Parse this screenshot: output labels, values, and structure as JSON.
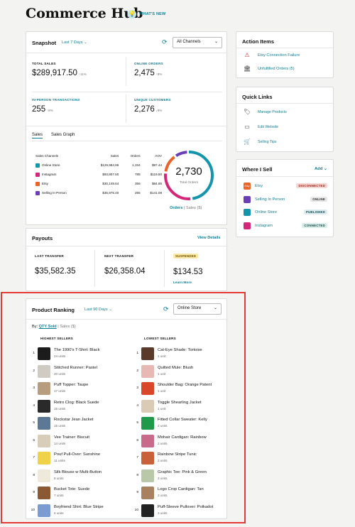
{
  "header": {
    "title": "Commerce Hub",
    "whats_new": "WHAT'S NEW"
  },
  "snapshot": {
    "title": "Snapshot",
    "range": "Last 7 Days",
    "channel": "All Channels",
    "metrics": [
      {
        "label": "TOTAL SALES",
        "value": "$289,917.50",
        "change": "↑11%"
      },
      {
        "label": "ONLINE ORDERS",
        "value": "2,475",
        "change": "↑8%"
      },
      {
        "label": "IN-PERSON TRANSACTIONS",
        "value": "255",
        "change": "↑8%"
      },
      {
        "label": "UNIQUE CUSTOMERS",
        "value": "2,276",
        "change": "↓6%"
      }
    ],
    "tabs": [
      "Sales",
      "Sales Graph"
    ],
    "table": {
      "headers": [
        "Sales Channels",
        "Sales",
        "Orders",
        "AOV"
      ],
      "rows": [
        {
          "channel": "Online Store",
          "sales": "$129,984.96",
          "orders": "1,334",
          "aov": "$97.44",
          "color": "#1595ab"
        },
        {
          "channel": "Instagram",
          "sales": "$93,807.50",
          "orders": "785",
          "aov": "$119.50",
          "color": "#d3287a"
        },
        {
          "channel": "Etsy",
          "sales": "$30,149.64",
          "orders": "356",
          "aov": "$84.69",
          "color": "#e8642a"
        },
        {
          "channel": "Selling In Person",
          "sales": "$35,975.40",
          "orders": "255",
          "aov": "$141.08",
          "color": "#6a3fb5"
        }
      ]
    },
    "donut": {
      "value": "2,730",
      "label": "Total Orders",
      "segments": [
        {
          "name": "Online Store",
          "value": 1334,
          "color": "#1595ab"
        },
        {
          "name": "Instagram",
          "value": 785,
          "color": "#d3287a"
        },
        {
          "name": "Etsy",
          "value": 356,
          "color": "#e8642a"
        },
        {
          "name": "Selling In Person",
          "value": 255,
          "color": "#6a3fb5"
        }
      ]
    },
    "toggle": {
      "active": "Orders",
      "inactive": "Sales ($)"
    }
  },
  "payouts": {
    "title": "Payouts",
    "view_details": "View Details",
    "last_label": "LAST TRANSFER",
    "last_value": "$35,582.35",
    "next_label": "NEXT TRANSFER",
    "next_value": "$26,358.04",
    "suspended_badge": "SUSPENDED",
    "suspended_value": "$134.53",
    "learn_more": "Learn More"
  },
  "ranking": {
    "title": "Product Ranking",
    "range": "Last 90 Days",
    "store": "Online Store",
    "by_label": "By:",
    "by_active": "QTY Sold",
    "by_inactive": "Sales ($)",
    "highest_title": "HIGHEST SELLERS",
    "lowest_title": "LOWEST SELLERS",
    "highest": [
      {
        "rank": "1",
        "name": "The 1990's T-Shirt: Black",
        "units": "24 units",
        "color": "#1c1c1c"
      },
      {
        "rank": "2",
        "name": "Stitched Runner: Pastel",
        "units": "20 units",
        "color": "#cfcac2"
      },
      {
        "rank": "3",
        "name": "Puff Topper: Taupe",
        "units": "17 units",
        "color": "#b89c7e"
      },
      {
        "rank": "4",
        "name": "Retro Clog: Black Suede",
        "units": "16 units",
        "color": "#2a2a2a"
      },
      {
        "rank": "5",
        "name": "Rockstar Jean Jacket",
        "units": "15 units",
        "color": "#5c7894"
      },
      {
        "rank": "6",
        "name": "Vee Trainer: Biscuit",
        "units": "14 units",
        "color": "#d8cdb8"
      },
      {
        "rank": "7",
        "name": "Pouf Pull-Over: Sunshine",
        "units": "11 units",
        "color": "#f0d24a"
      },
      {
        "rank": "8",
        "name": "Silk Blouse w Multi-Button",
        "units": "8 units",
        "color": "#efe9dc"
      },
      {
        "rank": "9",
        "name": "Bucket Tote: Suede",
        "units": "7 units",
        "color": "#8b5a34"
      },
      {
        "rank": "10",
        "name": "Boyfriend Shirt: Blue Stripe",
        "units": "6 units",
        "color": "#7c9bd0"
      }
    ],
    "lowest": [
      {
        "rank": "1",
        "name": "Cat-Eye Shade: Tortoise",
        "units": "1 unit",
        "color": "#5a3a2a"
      },
      {
        "rank": "2",
        "name": "Quilted Mule: Blush",
        "units": "1 unit",
        "color": "#e8b8b4"
      },
      {
        "rank": "3",
        "name": "Shoulder Bag: Orange Patent",
        "units": "1 unit",
        "color": "#d9472a"
      },
      {
        "rank": "4",
        "name": "Toggle Shearling Jacket",
        "units": "1 unit",
        "color": "#d9cbb6"
      },
      {
        "rank": "5",
        "name": "Fitted Collar Sweater: Kelly",
        "units": "2 units",
        "color": "#1f9a4a"
      },
      {
        "rank": "6",
        "name": "Mohair Cardigan: Rainbow",
        "units": "2 units",
        "color": "#c86a8a"
      },
      {
        "rank": "7",
        "name": "Rainbow Stripe Tunic",
        "units": "2 units",
        "color": "#c8603a"
      },
      {
        "rank": "8",
        "name": "Graphic Tee: Pink & Green",
        "units": "3 units",
        "color": "#b9c8a8"
      },
      {
        "rank": "9",
        "name": "Logo Crop Cardigan: Tan",
        "units": "3 units",
        "color": "#a88260"
      },
      {
        "rank": "10",
        "name": "Puff-Sleeve Pullover: Polkadot",
        "units": "3 units",
        "color": "#222222"
      }
    ]
  },
  "action_items": {
    "title": "Action Items",
    "items": [
      {
        "label": "Etsy Connection Failure",
        "icon": "warning-icon"
      },
      {
        "label": "Unfulfilled Orders (5)",
        "icon": "store-icon"
      }
    ]
  },
  "quick_links": {
    "title": "Quick Links",
    "items": [
      {
        "label": "Manage Products",
        "icon": "tag-icon"
      },
      {
        "label": "Edit Website",
        "icon": "browser-icon"
      },
      {
        "label": "Selling Tips",
        "icon": "cart-icon"
      }
    ]
  },
  "where_i_sell": {
    "title": "Where I Sell",
    "add": "Add",
    "channels": [
      {
        "name": "Etsy",
        "status": "DISCONNECTED",
        "icon_text": "Etsy",
        "color": "#e8642a",
        "status_bg": "#f7d6d2",
        "status_color": "#9b2218"
      },
      {
        "name": "Selling In Person",
        "status": "ONLINE",
        "icon_text": "",
        "color": "#6a3fb5",
        "status_bg": "#e6e6e6",
        "status_color": "#333"
      },
      {
        "name": "Online Store",
        "status": "PUBLISHED",
        "icon_text": "",
        "color": "#1595ab",
        "status_bg": "#dcecef",
        "status_color": "#1a4d57"
      },
      {
        "name": "Instagram",
        "status": "CONNECTED",
        "icon_text": "",
        "color": "#d3287a",
        "status_bg": "#d8ecea",
        "status_color": "#1a4d47"
      }
    ]
  },
  "colors": {
    "accent": "#0f7f95",
    "highlight_border": "#e53935",
    "suspended_bg": "#fbe8a6"
  }
}
